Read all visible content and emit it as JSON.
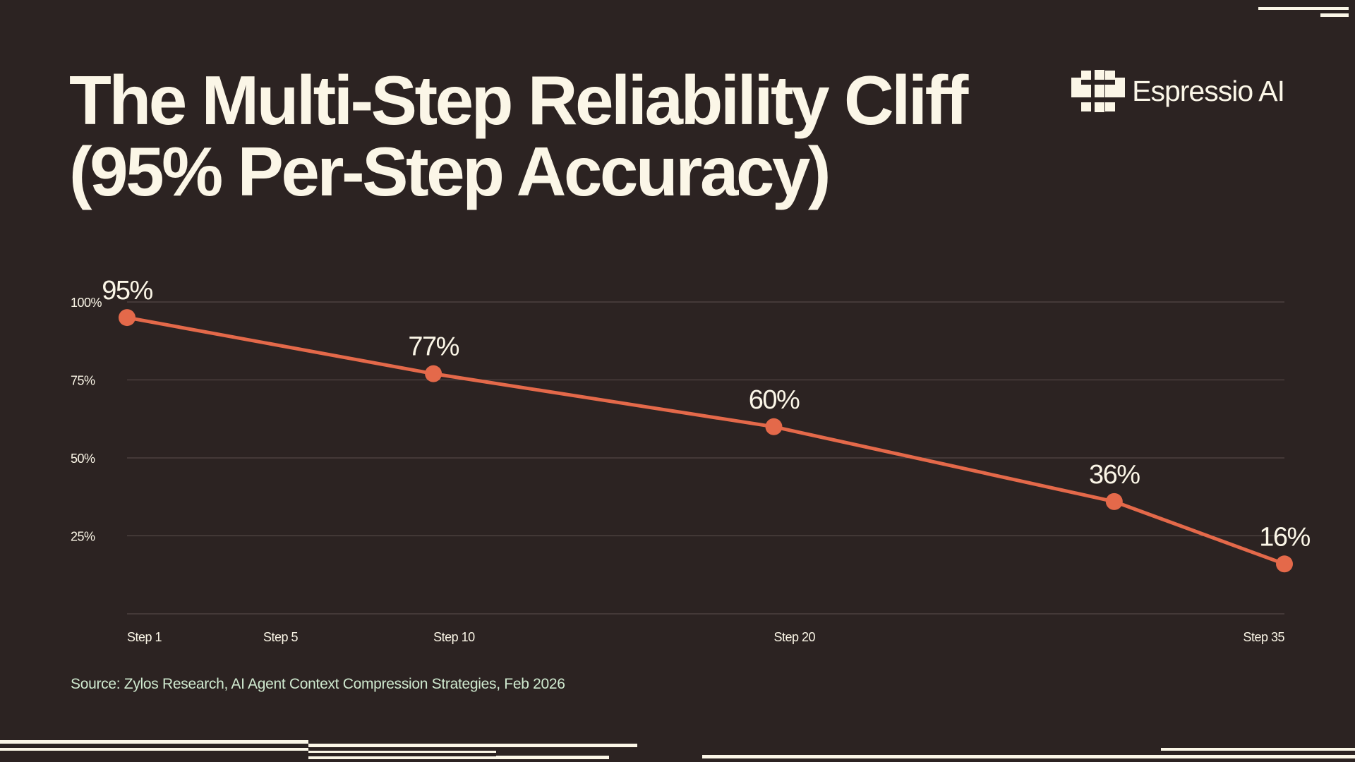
{
  "title_line1": "The Multi-Step Reliability Cliff",
  "title_line2": "(95% Per-Step Accuracy)",
  "brand": {
    "name": "Espressio AI",
    "logo_icon": "espressio-logo-icon"
  },
  "source": "Source: Zylos Research, AI Agent Context Compression Strategies, Feb 2026",
  "colors": {
    "background": "#2c2322",
    "text": "#fbf6e7",
    "accent": "#e4694a",
    "source_text": "#cfe9cf"
  },
  "chart_data": {
    "type": "line",
    "title": "The Multi-Step Reliability Cliff (95% Per-Step Accuracy)",
    "xlabel": "",
    "ylabel": "",
    "x_ticks": [
      {
        "step": 1,
        "label": "Step 1"
      },
      {
        "step": 5,
        "label": "Step 5"
      },
      {
        "step": 10,
        "label": "Step 10"
      },
      {
        "step": 20,
        "label": "Step 20"
      },
      {
        "step": 35,
        "label": "Step 35"
      }
    ],
    "y_ticks": [
      {
        "value": 100,
        "label": "100%"
      },
      {
        "value": 75,
        "label": "75%"
      },
      {
        "value": 50,
        "label": "50%"
      },
      {
        "value": 25,
        "label": "25%"
      }
    ],
    "ylim": [
      0,
      100
    ],
    "grid": true,
    "legend": "none",
    "series": [
      {
        "points": [
          {
            "step": 1,
            "value": 95,
            "label": "95%"
          },
          {
            "step": 10,
            "value": 77,
            "label": "77%"
          },
          {
            "step": 20,
            "value": 60,
            "label": "60%"
          },
          {
            "step": 30,
            "value": 36,
            "label": "36%"
          },
          {
            "step": 35,
            "value": 16,
            "label": "16%"
          }
        ]
      }
    ]
  }
}
